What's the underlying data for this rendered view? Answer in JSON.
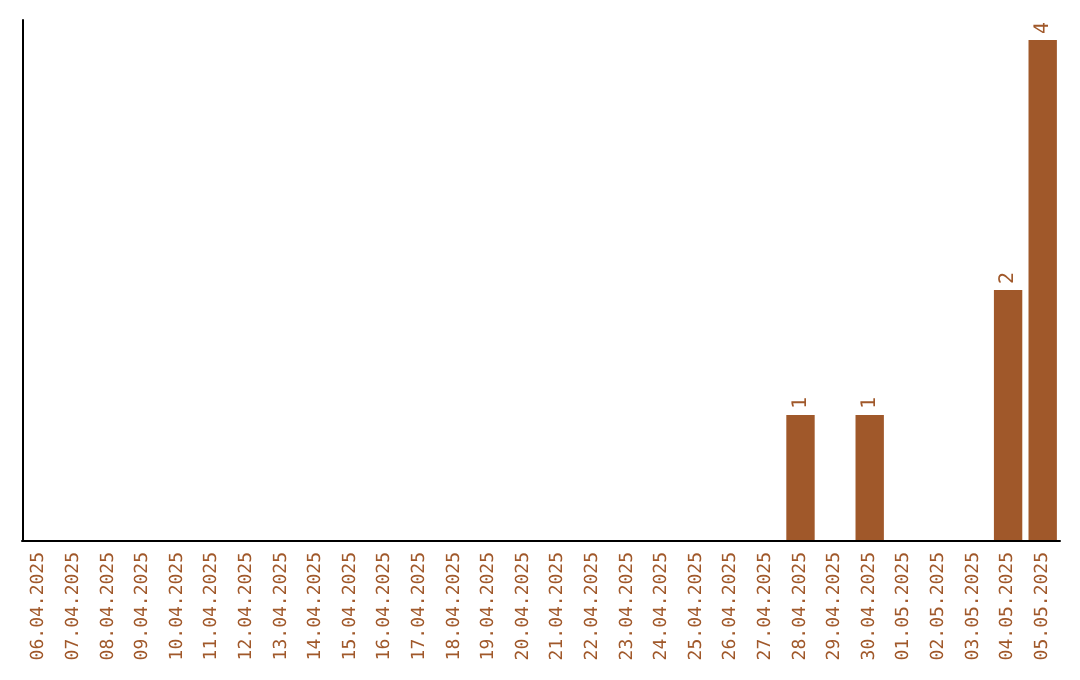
{
  "chart_data": {
    "type": "bar",
    "categories": [
      "06.04.2025",
      "07.04.2025",
      "08.04.2025",
      "09.04.2025",
      "10.04.2025",
      "11.04.2025",
      "12.04.2025",
      "13.04.2025",
      "14.04.2025",
      "15.04.2025",
      "16.04.2025",
      "17.04.2025",
      "18.04.2025",
      "19.04.2025",
      "20.04.2025",
      "21.04.2025",
      "22.04.2025",
      "23.04.2025",
      "24.04.2025",
      "25.04.2025",
      "26.04.2025",
      "27.04.2025",
      "28.04.2025",
      "29.04.2025",
      "30.04.2025",
      "01.05.2025",
      "02.05.2025",
      "03.05.2025",
      "04.05.2025",
      "05.05.2025"
    ],
    "values": [
      null,
      null,
      null,
      null,
      null,
      null,
      null,
      null,
      null,
      null,
      null,
      null,
      null,
      null,
      null,
      null,
      null,
      null,
      null,
      null,
      null,
      null,
      1,
      null,
      1,
      null,
      null,
      null,
      2,
      4
    ],
    "color": "#a0582a",
    "tick_labels": "x",
    "grid": false,
    "data_labels": true
  }
}
